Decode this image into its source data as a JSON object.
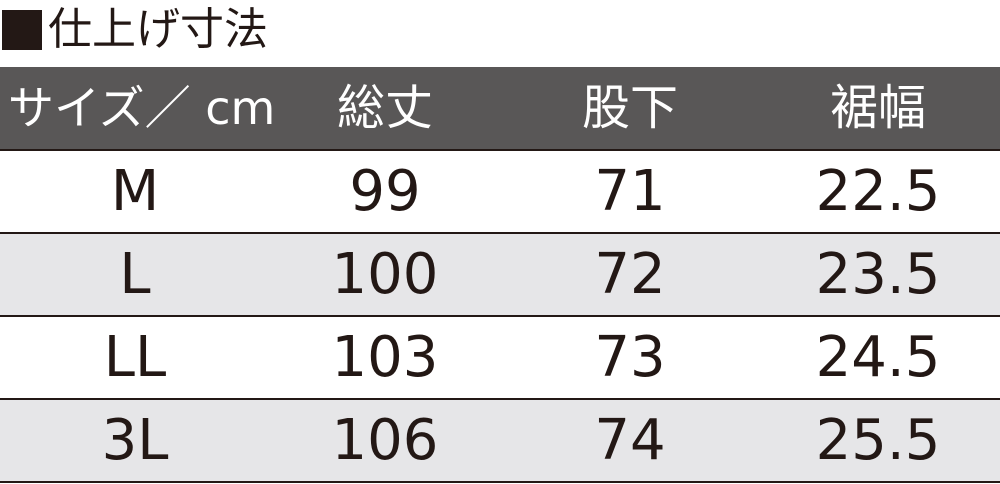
{
  "title": "仕上げ寸法",
  "colors": {
    "header_bg": "#595757",
    "alt_row_bg": "#e6e6e8",
    "text": "#231815"
  },
  "table": {
    "headers": [
      "サイズ／ cm",
      "総丈",
      "股下",
      "裾幅"
    ],
    "rows": [
      [
        "M",
        "99",
        "71",
        "22.5"
      ],
      [
        "L",
        "100",
        "72",
        "23.5"
      ],
      [
        "LL",
        "103",
        "73",
        "24.5"
      ],
      [
        "3L",
        "106",
        "74",
        "25.5"
      ]
    ]
  }
}
